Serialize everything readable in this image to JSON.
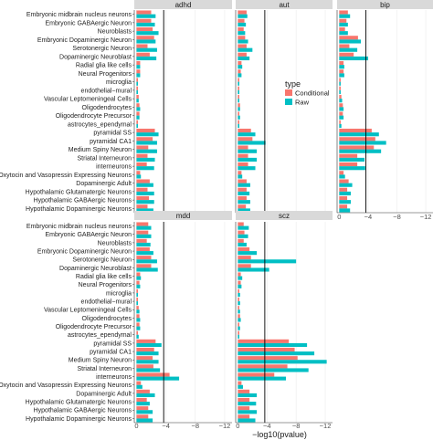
{
  "chart_data": {
    "type": "bar",
    "orientation": "horizontal",
    "categories": [
      "Embryonic midbrain nucleus neurons",
      "Embryonic GABAergic Neuron",
      "Neuroblasts",
      "Embryonic Dopaminergic Neuron",
      "Serotonergic Neuron",
      "Dopaminergic Neuroblast",
      "Radial glia like cells",
      "Neural Progenitors",
      "microglia",
      "endothelial−mural",
      "Vascular Leptomeningeal Cells",
      "Oligodendrocytes",
      "Oligodendrocyte Precursor",
      "astrocytes_ependymal",
      "pyramidal SS",
      "pyramidal CA1",
      "Medium Spiny Neuron",
      "Striatal Interneuron",
      "interneurons",
      "Oxytocin and Vasopressin Expressing Neurons",
      "Dopaminergic Adult",
      "Hypothalamic Glutamatergic Neurons",
      "Hypothalamic GABAergic Neurons",
      "Hypothalamic Dopaminergic Neurons"
    ],
    "x_ticks": [
      "0",
      "−4",
      "−8",
      "−12"
    ],
    "x_tick_values": [
      0,
      -4,
      -8,
      -12
    ],
    "xlim": [
      0.3,
      -13
    ],
    "threshold": -3.7,
    "xlabel": "−log10(pvalue)",
    "legend": {
      "title": "type",
      "position": "right",
      "entries": [
        "Conditional",
        "Raw"
      ]
    },
    "colors": {
      "Conditional": "#F8766D",
      "Raw": "#00BFC4",
      "strip_bg": "#d9d9d9",
      "grid": "#ebebeb"
    },
    "panels": [
      {
        "name": "adhd",
        "series": [
          {
            "name": "Conditional",
            "values": [
              -2.0,
              -2.0,
              -2.2,
              -2.4,
              -1.5,
              -1.8,
              -0.5,
              -0.5,
              -0.2,
              -0.2,
              -0.3,
              -0.4,
              -0.4,
              -0.2,
              -2.5,
              -2.2,
              -1.6,
              -1.5,
              -1.4,
              -0.5,
              -1.8,
              -1.5,
              -1.7,
              -1.5
            ]
          },
          {
            "name": "Raw",
            "values": [
              -2.6,
              -2.5,
              -3.0,
              -2.6,
              -2.8,
              -2.7,
              -0.5,
              -0.5,
              -0.2,
              -0.2,
              -0.3,
              -0.5,
              -0.4,
              -0.2,
              -3.0,
              -2.8,
              -2.8,
              -2.5,
              -2.4,
              -0.6,
              -2.3,
              -2.4,
              -2.4,
              -2.3
            ]
          }
        ]
      },
      {
        "name": "aut",
        "series": [
          {
            "name": "Conditional",
            "values": [
              -1.2,
              -0.9,
              -0.8,
              -1.0,
              -1.2,
              -1.2,
              -0.5,
              -0.4,
              -0.2,
              -0.2,
              -0.2,
              -0.3,
              -0.2,
              -0.2,
              -1.8,
              -2.0,
              -1.4,
              -1.4,
              -1.4,
              -0.5,
              -1.2,
              -1.2,
              -1.2,
              -1.1
            ]
          },
          {
            "name": "Raw",
            "values": [
              -1.3,
              -1.1,
              -1.0,
              -1.4,
              -2.0,
              -1.6,
              -0.6,
              -0.5,
              -0.2,
              -0.2,
              -0.2,
              -0.3,
              -0.3,
              -0.2,
              -2.4,
              -3.8,
              -2.6,
              -2.6,
              -2.4,
              -0.6,
              -1.7,
              -1.6,
              -1.7,
              -1.7
            ]
          }
        ]
      },
      {
        "name": "bip",
        "series": [
          {
            "name": "Conditional",
            "values": [
              -1.2,
              -1.0,
              -0.8,
              -2.6,
              -1.4,
              -2.0,
              -0.6,
              -0.6,
              -0.2,
              -0.2,
              -0.3,
              -0.5,
              -0.5,
              -0.2,
              -4.5,
              -5.0,
              -4.8,
              -2.5,
              -2.5,
              -0.6,
              -1.3,
              -1.1,
              -1.1,
              -1.1
            ]
          },
          {
            "name": "Raw",
            "values": [
              -1.5,
              -1.2,
              -1.2,
              -3.0,
              -2.5,
              -4.0,
              -0.7,
              -0.7,
              -0.2,
              -0.2,
              -0.4,
              -0.6,
              -0.6,
              -0.3,
              -5.5,
              -6.5,
              -5.8,
              -3.5,
              -3.6,
              -0.8,
              -1.8,
              -1.6,
              -1.6,
              -1.5
            ]
          }
        ]
      },
      {
        "name": "mdd",
        "series": [
          {
            "name": "Conditional",
            "values": [
              -1.6,
              -1.6,
              -1.4,
              -1.8,
              -2.0,
              -2.0,
              -0.5,
              -0.4,
              -0.2,
              -0.2,
              -0.3,
              -0.4,
              -0.4,
              -0.2,
              -2.6,
              -2.4,
              -2.2,
              -2.3,
              -4.5,
              -0.6,
              -1.8,
              -1.4,
              -1.6,
              -1.6
            ]
          },
          {
            "name": "Raw",
            "values": [
              -2.0,
              -2.0,
              -1.9,
              -2.3,
              -2.8,
              -2.9,
              -0.6,
              -0.5,
              -0.2,
              -0.2,
              -0.4,
              -0.5,
              -0.5,
              -0.3,
              -3.4,
              -3.0,
              -3.0,
              -3.2,
              -5.8,
              -0.8,
              -2.5,
              -1.8,
              -2.2,
              -2.2
            ]
          }
        ]
      },
      {
        "name": "scz",
        "series": [
          {
            "name": "Conditional",
            "values": [
              -0.8,
              -0.9,
              -0.8,
              -1.6,
              -1.8,
              -1.8,
              -0.4,
              -0.4,
              -0.2,
              -0.2,
              -0.2,
              -0.3,
              -0.2,
              -0.2,
              -7.0,
              -7.8,
              -8.2,
              -6.8,
              -5.0,
              -0.5,
              -1.6,
              -1.6,
              -1.6,
              -1.6
            ]
          },
          {
            "name": "Raw",
            "values": [
              -1.5,
              -1.4,
              -1.2,
              -2.6,
              -8.0,
              -4.3,
              -0.6,
              -0.5,
              -0.3,
              -0.3,
              -0.3,
              -0.4,
              -0.3,
              -0.2,
              -9.5,
              -10.5,
              -12.2,
              -9.7,
              -6.6,
              -0.7,
              -2.6,
              -2.5,
              -2.6,
              -2.4
            ]
          }
        ]
      }
    ]
  }
}
